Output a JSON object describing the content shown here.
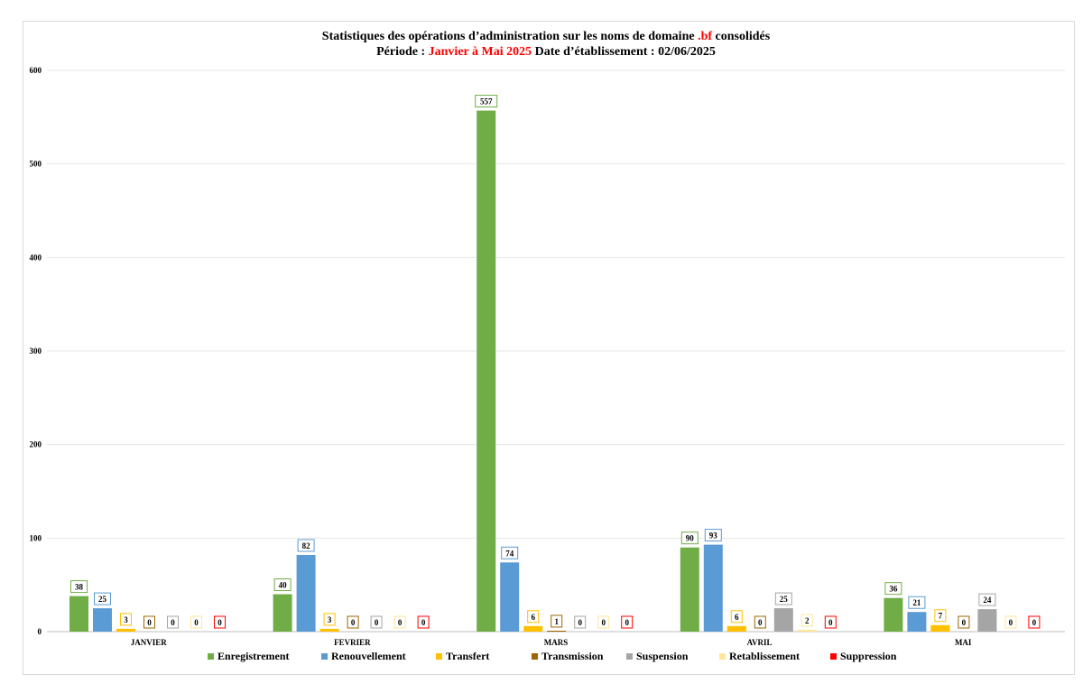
{
  "title": {
    "line1_prefix": "Statistiques des opérations d’administration sur les noms de domaine",
    "line1_highlight": ".bf",
    "line1_suffix": "consolidés",
    "line2_prefix": "Période :",
    "line2_highlight": "Janvier à Mai 2025",
    "line2_suffix": "Date d’établissement : 02/06/2025"
  },
  "chart_data": {
    "type": "bar",
    "categories": [
      "JANVIER",
      "FEVRIER",
      "MARS",
      "AVRIL",
      "MAI"
    ],
    "series": [
      {
        "name": "Enregistrement",
        "color": "#70ad47",
        "values": [
          38,
          40,
          557,
          90,
          36
        ]
      },
      {
        "name": "Renouvellement",
        "color": "#5b9bd5",
        "values": [
          25,
          82,
          74,
          93,
          21
        ]
      },
      {
        "name": "Transfert",
        "color": "#ffc000",
        "values": [
          3,
          3,
          6,
          6,
          7
        ]
      },
      {
        "name": "Transmission",
        "color": "#9c6500",
        "values": [
          0,
          0,
          1,
          0,
          0
        ]
      },
      {
        "name": "Suspension",
        "color": "#a5a5a5",
        "values": [
          0,
          0,
          0,
          25,
          24
        ]
      },
      {
        "name": "Retablissement",
        "color": "#ffe699",
        "values": [
          0,
          0,
          0,
          2,
          0
        ]
      },
      {
        "name": "Suppression",
        "color": "#ff0000",
        "values": [
          0,
          0,
          0,
          0,
          0
        ]
      }
    ],
    "yticks": [
      0,
      100,
      200,
      300,
      400,
      500,
      600
    ],
    "ylim": [
      0,
      600
    ],
    "grid": true,
    "legend_position": "bottom",
    "highlight_color": "#ff0000"
  }
}
